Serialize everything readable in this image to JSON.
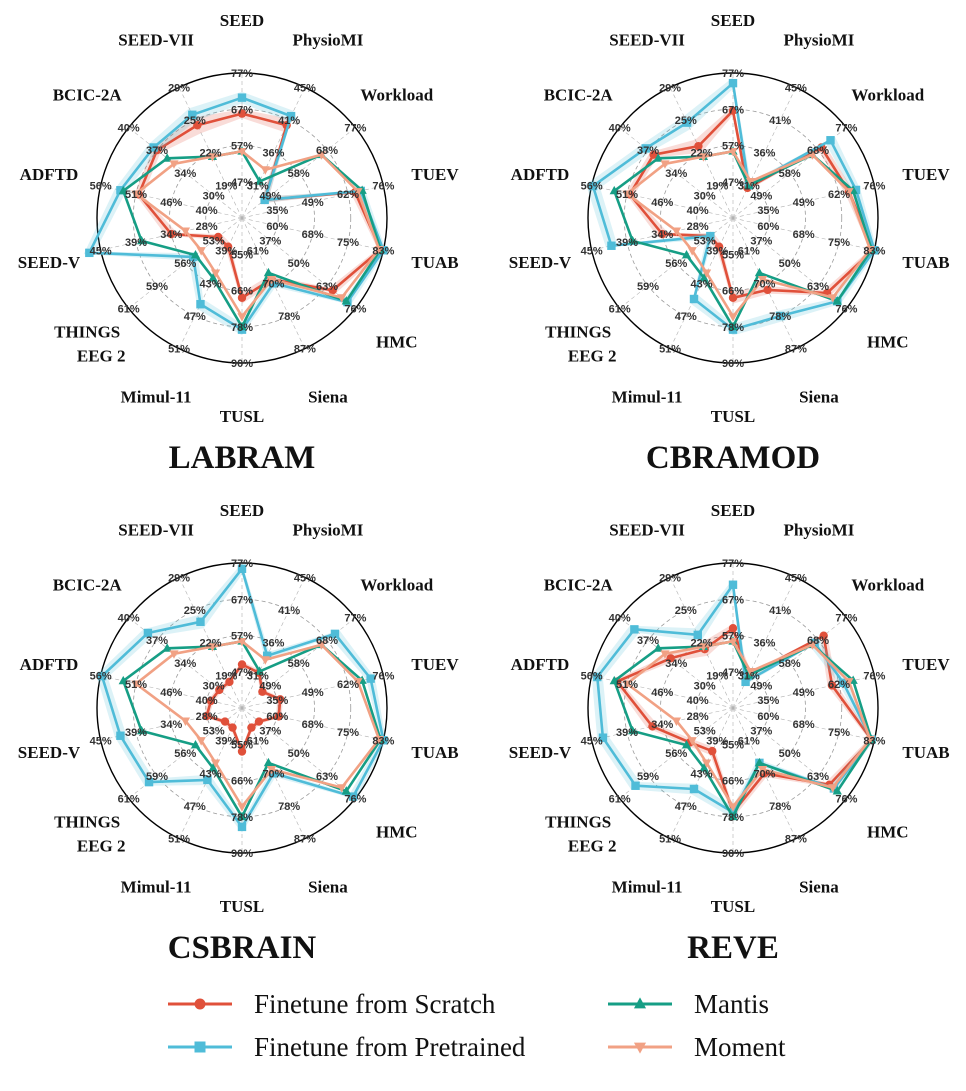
{
  "chart_data": [
    {
      "type": "radar",
      "title": "LABRAM",
      "axes": [
        "SEED",
        "PhysioMI",
        "Workload",
        "TUEV",
        "TUAB",
        "HMC",
        "Siena",
        "TUSL",
        "Mimul-11",
        "THINGS EEG 2",
        "SEED-V",
        "ADFTD",
        "BCIC-2A",
        "SEED-VII"
      ],
      "rings": [
        [
          "47%",
          "57%",
          "67%",
          "77%"
        ],
        [
          "31%",
          "36%",
          "41%",
          "45%"
        ],
        [
          "49%",
          "58%",
          "68%",
          "77%"
        ],
        [
          "35%",
          "49%",
          "62%",
          "76%"
        ],
        [
          "60%",
          "68%",
          "75%",
          "83%"
        ],
        [
          "37%",
          "50%",
          "63%",
          "76%"
        ],
        [
          "61%",
          "70%",
          "78%",
          "87%"
        ],
        [
          "55%",
          "66%",
          "78%",
          "90%"
        ],
        [
          "39%",
          "43%",
          "47%",
          "51%"
        ],
        [
          "53%",
          "56%",
          "59%",
          "61%"
        ],
        [
          "28%",
          "34%",
          "39%",
          "45%"
        ],
        [
          "40%",
          "46%",
          "51%",
          "56%"
        ],
        [
          "30%",
          "34%",
          "37%",
          "40%"
        ],
        [
          "19%",
          "22%",
          "25%",
          "29%"
        ]
      ],
      "series": [
        {
          "name": "Finetune from Scratch",
          "values": [
            0.72,
            0.71,
            0.2,
            0.8,
            0.98,
            0.8,
            0.47,
            0.55,
            0.22,
            0.21,
            0.5,
            0.73,
            0.75,
            0.71
          ],
          "band": [
            0.03,
            0.05,
            0.04,
            0.03,
            0.02,
            0.03,
            0.03,
            0.04,
            0.03,
            0.03,
            0.04,
            0.03,
            0.03,
            0.06
          ]
        },
        {
          "name": "Finetune from Pretrained",
          "values": [
            0.83,
            0.78,
            0.2,
            0.84,
            1.0,
            0.93,
            0.5,
            0.77,
            0.66,
            0.43,
            1.08,
            0.86,
            0.78,
            0.79
          ],
          "band": [
            0.04,
            0.04,
            0.04,
            0.03,
            0.02,
            0.03,
            0.03,
            0.04,
            0.04,
            0.04,
            0.04,
            0.04,
            0.04,
            0.05
          ]
        },
        {
          "name": "Mantis",
          "values": [
            0.46,
            0.28,
            0.7,
            0.85,
            0.98,
            0.92,
            0.42,
            0.75,
            0.46,
            0.41,
            0.71,
            0.84,
            0.66,
            0.47
          ]
        },
        {
          "name": "Moment",
          "values": [
            0.46,
            0.37,
            0.7,
            0.82,
            0.97,
            0.88,
            0.47,
            0.68,
            0.42,
            0.36,
            0.4,
            0.75,
            0.6,
            0.47
          ]
        }
      ]
    },
    {
      "type": "radar",
      "title": "CBRAMOD",
      "axes": [
        "SEED",
        "PhysioMI",
        "Workload",
        "TUEV",
        "TUAB",
        "HMC",
        "Siena",
        "TUSL",
        "Mimul-11",
        "THINGS EEG 2",
        "SEED-V",
        "ADFTD",
        "BCIC-2A",
        "SEED-VII"
      ],
      "rings": [
        [
          "47%",
          "57%",
          "67%",
          "77%"
        ],
        [
          "31%",
          "36%",
          "41%",
          "45%"
        ],
        [
          "49%",
          "58%",
          "68%",
          "77%"
        ],
        [
          "35%",
          "49%",
          "62%",
          "76%"
        ],
        [
          "60%",
          "68%",
          "75%",
          "83%"
        ],
        [
          "37%",
          "50%",
          "63%",
          "76%"
        ],
        [
          "61%",
          "70%",
          "78%",
          "87%"
        ],
        [
          "55%",
          "66%",
          "78%",
          "90%"
        ],
        [
          "39%",
          "43%",
          "47%",
          "51%"
        ],
        [
          "53%",
          "56%",
          "59%",
          "61%"
        ],
        [
          "28%",
          "34%",
          "39%",
          "45%"
        ],
        [
          "40%",
          "46%",
          "51%",
          "56%"
        ],
        [
          "30%",
          "34%",
          "37%",
          "40%"
        ],
        [
          "19%",
          "22%",
          "25%",
          "29%"
        ]
      ],
      "series": [
        {
          "name": "Finetune from Scratch",
          "values": [
            0.74,
            0.23,
            0.78,
            0.82,
            0.99,
            0.83,
            0.55,
            0.55,
            0.22,
            0.2,
            0.5,
            0.73,
            0.7,
            0.55
          ],
          "band": [
            0.03,
            0.03,
            0.03,
            0.03,
            0.02,
            0.03,
            0.03,
            0.04,
            0.03,
            0.03,
            0.04,
            0.03,
            0.03,
            0.05
          ]
        },
        {
          "name": "Finetune from Pretrained",
          "values": [
            0.93,
            0.25,
            0.86,
            0.87,
            1.0,
            0.92,
            0.75,
            0.77,
            0.62,
            0.2,
            0.86,
            0.99,
            0.77,
            0.73
          ],
          "band": [
            0.04,
            0.03,
            0.04,
            0.03,
            0.02,
            0.03,
            0.04,
            0.04,
            0.04,
            0.04,
            0.04,
            0.05,
            0.04,
            0.05
          ]
        },
        {
          "name": "Mantis",
          "values": [
            0.46,
            0.25,
            0.7,
            0.85,
            0.98,
            0.92,
            0.42,
            0.75,
            0.46,
            0.41,
            0.71,
            0.84,
            0.66,
            0.47
          ]
        },
        {
          "name": "Moment",
          "values": [
            0.46,
            0.28,
            0.7,
            0.82,
            0.97,
            0.88,
            0.47,
            0.68,
            0.42,
            0.36,
            0.4,
            0.75,
            0.6,
            0.47
          ]
        }
      ]
    },
    {
      "type": "radar",
      "title": "CSBRAIN",
      "axes": [
        "SEED",
        "PhysioMI",
        "Workload",
        "TUEV",
        "TUAB",
        "HMC",
        "Siena",
        "TUSL",
        "Mimul-11",
        "THINGS EEG 2",
        "SEED-V",
        "ADFTD",
        "BCIC-2A",
        "SEED-VII"
      ],
      "rings": [
        [
          "47%",
          "57%",
          "67%",
          "77%"
        ],
        [
          "31%",
          "36%",
          "41%",
          "45%"
        ],
        [
          "49%",
          "58%",
          "68%",
          "77%"
        ],
        [
          "35%",
          "49%",
          "62%",
          "76%"
        ],
        [
          "60%",
          "68%",
          "75%",
          "83%"
        ],
        [
          "37%",
          "50%",
          "63%",
          "76%"
        ],
        [
          "61%",
          "70%",
          "78%",
          "87%"
        ],
        [
          "55%",
          "66%",
          "78%",
          "90%"
        ],
        [
          "39%",
          "43%",
          "47%",
          "51%"
        ],
        [
          "53%",
          "56%",
          "59%",
          "61%"
        ],
        [
          "28%",
          "34%",
          "39%",
          "45%"
        ],
        [
          "40%",
          "46%",
          "51%",
          "56%"
        ],
        [
          "30%",
          "34%",
          "37%",
          "40%"
        ],
        [
          "19%",
          "22%",
          "25%",
          "29%"
        ]
      ],
      "series": [
        {
          "name": "Finetune from Scratch",
          "values": [
            0.3,
            0.27,
            0.18,
            0.27,
            0.26,
            0.15,
            0.15,
            0.3,
            0.15,
            0.15,
            0.25,
            0.22,
            0.2,
            0.2
          ],
          "band": [
            0.02,
            0.02,
            0.02,
            0.02,
            0.02,
            0.02,
            0.02,
            0.02,
            0.02,
            0.02,
            0.02,
            0.02,
            0.02,
            0.02
          ]
        },
        {
          "name": "Finetune from Pretrained",
          "values": [
            0.96,
            0.4,
            0.82,
            0.91,
            1.0,
            0.98,
            0.5,
            0.82,
            0.55,
            0.82,
            0.86,
            0.99,
            0.83,
            0.66
          ],
          "band": [
            0.04,
            0.03,
            0.04,
            0.03,
            0.02,
            0.03,
            0.03,
            0.04,
            0.04,
            0.04,
            0.04,
            0.04,
            0.04,
            0.05
          ]
        },
        {
          "name": "Mantis",
          "values": [
            0.46,
            0.28,
            0.7,
            0.85,
            0.98,
            0.92,
            0.42,
            0.75,
            0.46,
            0.41,
            0.71,
            0.84,
            0.66,
            0.47
          ]
        },
        {
          "name": "Moment",
          "values": [
            0.46,
            0.37,
            0.7,
            0.82,
            0.97,
            0.88,
            0.47,
            0.68,
            0.42,
            0.36,
            0.4,
            0.75,
            0.6,
            0.47
          ]
        }
      ]
    },
    {
      "type": "radar",
      "title": "REVE",
      "axes": [
        "SEED",
        "PhysioMI",
        "Workload",
        "TUEV",
        "TUAB",
        "HMC",
        "Siena",
        "TUSL",
        "Mimul-11",
        "THINGS EEG 2",
        "SEED-V",
        "ADFTD",
        "BCIC-2A",
        "SEED-VII"
      ],
      "rings": [
        [
          "47%",
          "57%",
          "67%",
          "77%"
        ],
        [
          "31%",
          "36%",
          "41%",
          "45%"
        ],
        [
          "49%",
          "58%",
          "68%",
          "77%"
        ],
        [
          "35%",
          "49%",
          "62%",
          "76%"
        ],
        [
          "60%",
          "68%",
          "75%",
          "83%"
        ],
        [
          "37%",
          "50%",
          "63%",
          "76%"
        ],
        [
          "61%",
          "70%",
          "78%",
          "87%"
        ],
        [
          "55%",
          "66%",
          "78%",
          "90%"
        ],
        [
          "39%",
          "43%",
          "47%",
          "51%"
        ],
        [
          "53%",
          "56%",
          "59%",
          "61%"
        ],
        [
          "28%",
          "34%",
          "39%",
          "45%"
        ],
        [
          "40%",
          "46%",
          "51%",
          "56%"
        ],
        [
          "30%",
          "34%",
          "37%",
          "40%"
        ],
        [
          "19%",
          "22%",
          "25%",
          "29%"
        ]
      ],
      "series": [
        {
          "name": "Finetune from Scratch",
          "values": [
            0.55,
            0.25,
            0.8,
            0.7,
            0.98,
            0.85,
            0.5,
            0.72,
            0.33,
            0.38,
            0.57,
            0.82,
            0.55,
            0.45
          ],
          "band": [
            0.03,
            0.03,
            0.03,
            0.03,
            0.02,
            0.03,
            0.03,
            0.04,
            0.03,
            0.03,
            0.04,
            0.03,
            0.03,
            0.05
          ]
        },
        {
          "name": "Finetune from Pretrained",
          "values": [
            0.85,
            0.2,
            0.72,
            0.78,
            0.98,
            0.89,
            0.42,
            0.72,
            0.62,
            0.86,
            0.92,
            0.96,
            0.87,
            0.56
          ],
          "band": [
            0.04,
            0.03,
            0.04,
            0.03,
            0.02,
            0.03,
            0.03,
            0.04,
            0.04,
            0.04,
            0.04,
            0.04,
            0.04,
            0.05
          ]
        },
        {
          "name": "Mantis",
          "values": [
            0.46,
            0.25,
            0.7,
            0.85,
            0.98,
            0.92,
            0.42,
            0.75,
            0.46,
            0.41,
            0.71,
            0.84,
            0.66,
            0.47
          ]
        },
        {
          "name": "Moment",
          "values": [
            0.46,
            0.28,
            0.7,
            0.82,
            0.97,
            0.88,
            0.47,
            0.68,
            0.42,
            0.36,
            0.4,
            0.75,
            0.6,
            0.47
          ]
        }
      ]
    }
  ],
  "legend": {
    "items": [
      {
        "label": "Finetune from Scratch",
        "color": "#e0503a",
        "marker": "circle"
      },
      {
        "label": "Finetune from Pretrained",
        "color": "#4fbcd8",
        "marker": "square"
      },
      {
        "label": "Mantis",
        "color": "#169e85",
        "marker": "triangle-up"
      },
      {
        "label": "Moment",
        "color": "#f1a184",
        "marker": "triangle-down"
      }
    ]
  },
  "colors": {
    "scratch": "#e0503a",
    "pretrained": "#4fbcd8",
    "mantis": "#169e85",
    "moment": "#f1a184"
  }
}
